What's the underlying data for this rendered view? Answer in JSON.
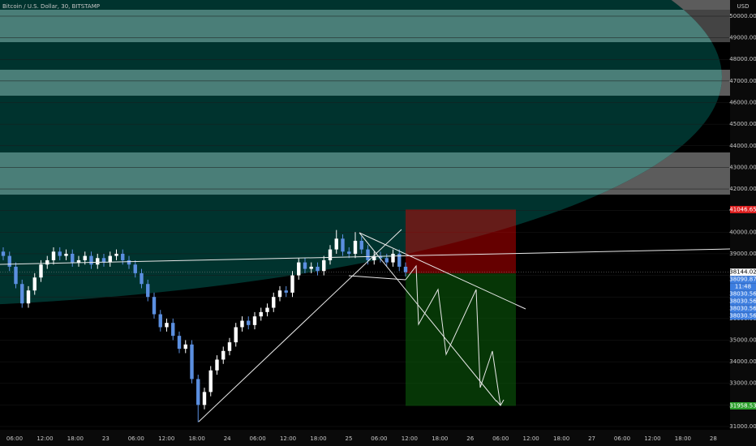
{
  "chart_data": {
    "type": "candlestick",
    "title": "Bitcoin / U.S. Dollar, 30, BITSTAMP",
    "currency": "USD",
    "up_color": "#ffffff",
    "down_color": "#5b8fe0",
    "ylim": [
      30850,
      50750
    ],
    "yticks": [
      {
        "value": 31000,
        "label": "31000.00"
      },
      {
        "value": 32000,
        "label": "32000.00"
      },
      {
        "value": 33000,
        "label": "33000.00"
      },
      {
        "value": 34000,
        "label": "34000.00"
      },
      {
        "value": 35000,
        "label": "35000.00"
      },
      {
        "value": 36000,
        "label": "36000.00"
      },
      {
        "value": 37000,
        "label": "37000.00"
      },
      {
        "value": 38000,
        "label": "38000.00"
      },
      {
        "value": 39000,
        "label": "39000.00"
      },
      {
        "value": 40000,
        "label": "40000.00"
      },
      {
        "value": 41000,
        "label": "41000.00"
      },
      {
        "value": 42000,
        "label": "42000.00"
      },
      {
        "value": 43000,
        "label": "43000.00"
      },
      {
        "value": 44000,
        "label": "44000.00"
      },
      {
        "value": 45000,
        "label": "45000.00"
      },
      {
        "value": 46000,
        "label": "46000.00"
      },
      {
        "value": 47000,
        "label": "47000.00"
      },
      {
        "value": 48000,
        "label": "48000.00"
      },
      {
        "value": 49000,
        "label": "49000.00"
      },
      {
        "value": 50000,
        "label": "50000.00"
      }
    ],
    "x_labels": [
      "06:00",
      "12:00",
      "18:00",
      "23",
      "06:00",
      "12:00",
      "18:00",
      "24",
      "06:00",
      "12:00",
      "18:00",
      "25",
      "06:00",
      "12:00",
      "18:00",
      "26",
      "06:00",
      "12:00",
      "18:00",
      "27",
      "06:00",
      "12:00",
      "18:00",
      "28"
    ],
    "open": [
      39100,
      38900,
      38400,
      37600,
      36700,
      37300,
      37900,
      38500,
      38700,
      39100,
      38900,
      39000,
      38600,
      38700,
      38900,
      38500,
      38800,
      38600,
      38900,
      39000,
      38700,
      38500,
      38100,
      37600,
      37000,
      36200,
      35600,
      35800,
      35200,
      34600,
      34800,
      33200,
      32000,
      32600,
      33600,
      34100,
      34500,
      34900,
      35600,
      35900,
      35700,
      36100,
      36300,
      36500,
      37000,
      37300,
      37200,
      38000,
      38600,
      38300,
      38400,
      38200,
      38700,
      39200,
      39700,
      39100,
      39000,
      39600,
      39200,
      38700,
      38900,
      38800,
      38600,
      39000,
      38400
    ],
    "high": [
      39300,
      39100,
      38600,
      37800,
      37500,
      38100,
      38700,
      38900,
      39300,
      39300,
      39200,
      39200,
      38900,
      39100,
      39100,
      39000,
      39000,
      39100,
      39200,
      39200,
      38900,
      38700,
      38300,
      37800,
      37200,
      36400,
      36000,
      36000,
      35400,
      35000,
      35000,
      33400,
      32800,
      33800,
      34300,
      34700,
      35100,
      35800,
      36100,
      36100,
      36300,
      36500,
      36700,
      37200,
      37500,
      37500,
      38200,
      38800,
      38800,
      38600,
      38600,
      38900,
      39400,
      40100,
      39900,
      39300,
      40000,
      39800,
      39400,
      39100,
      39100,
      39000,
      39200,
      39200,
      38600
    ],
    "low": [
      38700,
      38200,
      37400,
      36500,
      36500,
      37100,
      37700,
      38300,
      38500,
      38700,
      38700,
      38400,
      38400,
      38500,
      38300,
      38300,
      38400,
      38400,
      38700,
      38500,
      38300,
      37900,
      37400,
      36800,
      36000,
      35400,
      35400,
      35000,
      34400,
      34400,
      33000,
      31200,
      31800,
      32400,
      33400,
      33900,
      34300,
      34700,
      35400,
      35500,
      35500,
      35900,
      36100,
      36300,
      36800,
      37000,
      37000,
      37800,
      38100,
      38100,
      38000,
      38000,
      38500,
      39000,
      38900,
      38800,
      38800,
      39000,
      38500,
      38500,
      38600,
      38400,
      38400,
      38200,
      37950
    ],
    "close": [
      38900,
      38400,
      37600,
      36700,
      37300,
      37900,
      38500,
      38700,
      39100,
      38900,
      39000,
      38600,
      38700,
      38900,
      38500,
      38800,
      38600,
      38900,
      39000,
      38700,
      38500,
      38100,
      37600,
      37000,
      36200,
      35600,
      35800,
      35200,
      34600,
      34800,
      33200,
      32000,
      32600,
      33600,
      34100,
      34500,
      34900,
      35600,
      35900,
      35700,
      36100,
      36300,
      36500,
      37000,
      37300,
      37200,
      38000,
      38600,
      38300,
      38400,
      38200,
      38700,
      39200,
      39700,
      39100,
      39000,
      39600,
      39200,
      38700,
      38900,
      38800,
      38600,
      39000,
      38400,
      38150
    ],
    "price_tags": [
      {
        "text": 41046.65,
        "bg": "#e02020"
      },
      {
        "text": 38144.02,
        "bg": "#ffffff"
      },
      {
        "text": 38090.87,
        "bg": "#3d7ee0"
      },
      {
        "text": "11:48",
        "bg": "#3d7ee0"
      },
      {
        "text": 38030.56,
        "bg": "#3d7ee0"
      },
      {
        "text": 38030.56,
        "bg": "#3d7ee0"
      },
      {
        "text": 38030.56,
        "bg": "#3d7ee0"
      },
      {
        "text": 38030.56,
        "bg": "#3d7ee0"
      },
      {
        "text": 31958.53,
        "bg": "#2ca02c"
      }
    ]
  }
}
